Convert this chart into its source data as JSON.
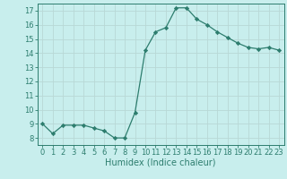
{
  "x": [
    0,
    1,
    2,
    3,
    4,
    5,
    6,
    7,
    8,
    9,
    10,
    11,
    12,
    13,
    14,
    15,
    16,
    17,
    18,
    19,
    20,
    21,
    22,
    23
  ],
  "y": [
    9.0,
    8.3,
    8.9,
    8.9,
    8.9,
    8.7,
    8.5,
    8.0,
    8.0,
    9.8,
    14.2,
    15.5,
    15.8,
    17.2,
    17.2,
    16.4,
    16.0,
    15.5,
    15.1,
    14.7,
    14.4,
    14.3,
    14.4,
    14.2
  ],
  "line_color": "#2d7d6e",
  "marker": "D",
  "marker_size": 2.2,
  "bg_color": "#c8eeed",
  "grid_color": "#b8d8d6",
  "xlabel": "Humidex (Indice chaleur)",
  "xlim": [
    -0.5,
    23.5
  ],
  "ylim": [
    7.5,
    17.5
  ],
  "yticks": [
    8,
    9,
    10,
    11,
    12,
    13,
    14,
    15,
    16,
    17
  ],
  "xticks": [
    0,
    1,
    2,
    3,
    4,
    5,
    6,
    7,
    8,
    9,
    10,
    11,
    12,
    13,
    14,
    15,
    16,
    17,
    18,
    19,
    20,
    21,
    22,
    23
  ],
  "xlabel_fontsize": 7.0,
  "tick_fontsize": 6.0,
  "tick_color": "#2d7d6e",
  "spine_color": "#2d7d6e",
  "linewidth": 0.9
}
